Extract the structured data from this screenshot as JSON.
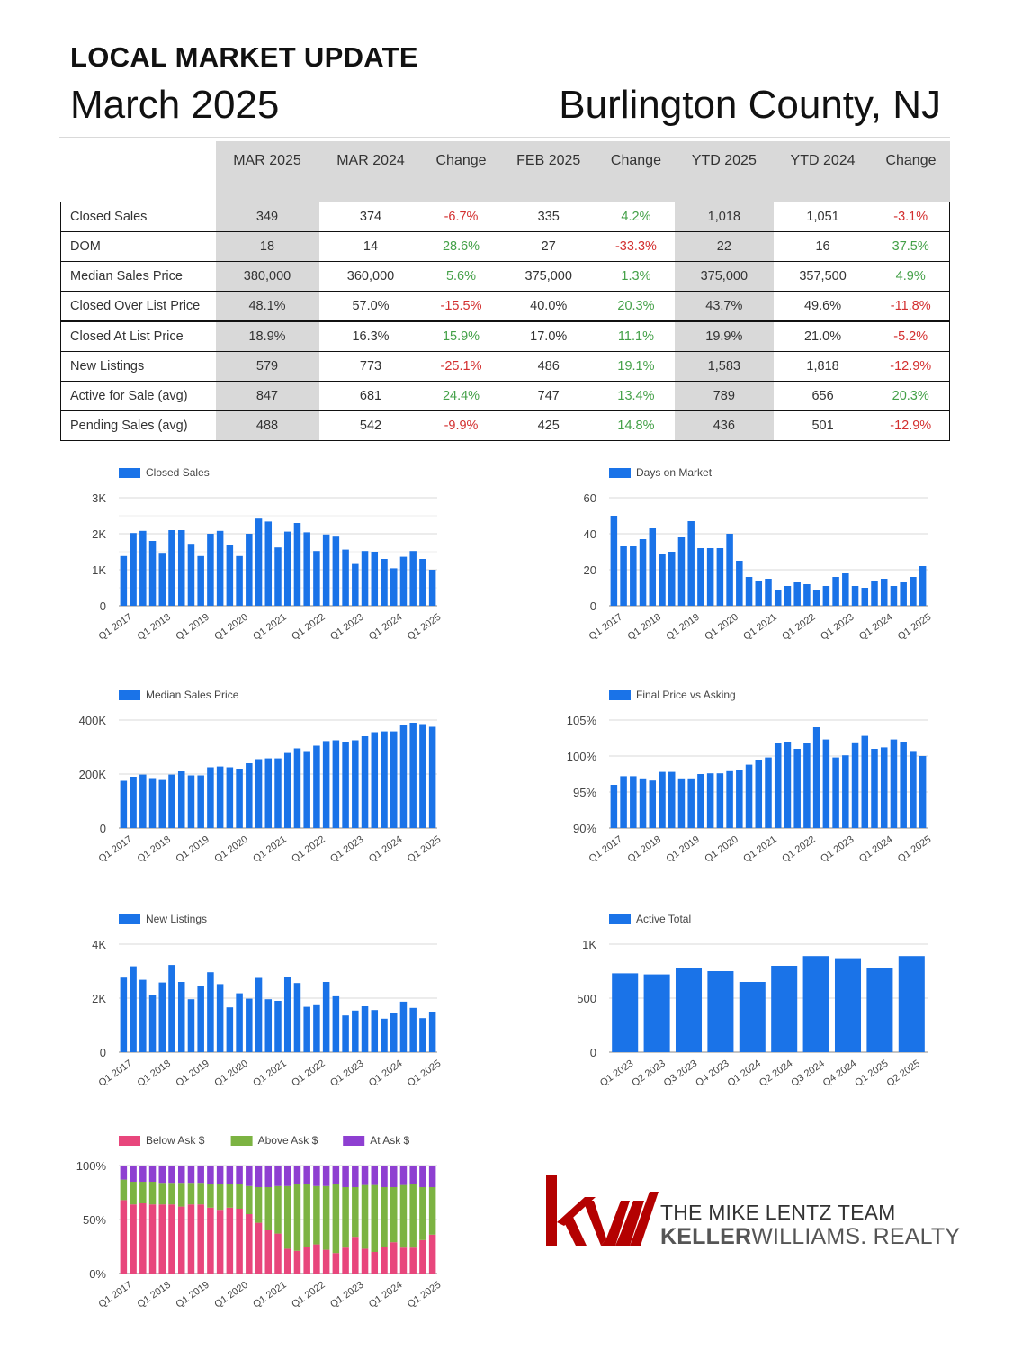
{
  "header": {
    "title": "LOCAL MARKET UPDATE",
    "month": "March 2025",
    "county": "Burlington County, NJ"
  },
  "table": {
    "columns": [
      "MAR 2025",
      "MAR 2024",
      "Change",
      "FEB 2025",
      "Change",
      "YTD 2025",
      "YTD 2024",
      "Change"
    ],
    "rows": [
      {
        "label": "Closed Sales",
        "values": [
          "349",
          "374",
          "-6.7%",
          "335",
          "4.2%",
          "1,018",
          "1,051",
          "-3.1%"
        ]
      },
      {
        "label": "DOM",
        "values": [
          "18",
          "14",
          "28.6%",
          "27",
          "-33.3%",
          "22",
          "16",
          "37.5%"
        ]
      },
      {
        "label": "Median Sales Price",
        "values": [
          "380,000",
          "360,000",
          "5.6%",
          "375,000",
          "1.3%",
          "375,000",
          "357,500",
          "4.9%"
        ]
      },
      {
        "label": "Closed Over List Price",
        "values": [
          "48.1%",
          "57.0%",
          "-15.5%",
          "40.0%",
          "20.3%",
          "43.7%",
          "49.6%",
          "-11.8%"
        ]
      },
      {
        "label": "Closed At List Price",
        "values": [
          "18.9%",
          "16.3%",
          "15.9%",
          "17.0%",
          "11.1%",
          "19.9%",
          "21.0%",
          "-5.2%"
        ]
      },
      {
        "label": "New Listings",
        "values": [
          "579",
          "773",
          "-25.1%",
          "486",
          "19.1%",
          "1,583",
          "1,818",
          "-12.9%"
        ]
      },
      {
        "label": "Active for Sale (avg)",
        "values": [
          "847",
          "681",
          "24.4%",
          "747",
          "13.4%",
          "789",
          "656",
          "20.3%"
        ]
      },
      {
        "label": "Pending Sales (avg)",
        "values": [
          "488",
          "542",
          "-9.9%",
          "425",
          "14.8%",
          "436",
          "501",
          "-12.9%"
        ]
      }
    ],
    "change_colors": {
      "negative": "#d32f2f",
      "positive": "#43a047"
    },
    "shade_color": "#d9d9d9"
  },
  "chart_data": [
    {
      "type": "bar",
      "legend": [
        "Closed Sales"
      ],
      "ylim": [
        0,
        3000
      ],
      "yticks": [
        "0",
        "1K",
        "2K",
        "3K"
      ],
      "xticks": [
        "Q1 2017",
        "Q1 2018",
        "Q1 2019",
        "Q1 2020",
        "Q1 2021",
        "Q1 2022",
        "Q1 2023",
        "Q1 2024",
        "Q1 2025"
      ],
      "series": [
        {
          "name": "Closed Sales",
          "values": [
            1380,
            2020,
            2080,
            1800,
            1470,
            2100,
            2100,
            1720,
            1380,
            2000,
            2080,
            1700,
            1380,
            2000,
            2420,
            2340,
            1620,
            2060,
            2300,
            2040,
            1520,
            1980,
            1920,
            1560,
            1160,
            1520,
            1500,
            1300,
            1040,
            1360,
            1520,
            1300,
            1000
          ]
        }
      ],
      "colors": [
        "#1a73e8"
      ]
    },
    {
      "type": "bar",
      "legend": [
        "Days on Market"
      ],
      "ylim": [
        0,
        60
      ],
      "yticks": [
        "0",
        "20",
        "40",
        "60"
      ],
      "xticks": [
        "Q1 2017",
        "Q1 2018",
        "Q1 2019",
        "Q1 2020",
        "Q1 2021",
        "Q1 2022",
        "Q1 2023",
        "Q1 2024",
        "Q1 2025"
      ],
      "series": [
        {
          "name": "Days on Market",
          "values": [
            50,
            33,
            33,
            37,
            43,
            29,
            30,
            38,
            47,
            32,
            32,
            32,
            40,
            25,
            16,
            14,
            15,
            9,
            11,
            13,
            12,
            9,
            11,
            16,
            18,
            11,
            10,
            14,
            15,
            11,
            13,
            16,
            22
          ]
        }
      ],
      "colors": [
        "#1a73e8"
      ]
    },
    {
      "type": "bar",
      "legend": [
        "Median Sales Price"
      ],
      "ylim": [
        0,
        400000
      ],
      "yticks": [
        "0",
        "200K",
        "400K"
      ],
      "xticks": [
        "Q1 2017",
        "Q1 2018",
        "Q1 2019",
        "Q1 2020",
        "Q1 2021",
        "Q1 2022",
        "Q1 2023",
        "Q1 2024",
        "Q1 2025"
      ],
      "series": [
        {
          "name": "Median Sales Price",
          "values": [
            175000,
            190000,
            198000,
            185000,
            178000,
            198000,
            210000,
            195000,
            195000,
            225000,
            228000,
            225000,
            220000,
            240000,
            255000,
            258000,
            258000,
            278000,
            295000,
            285000,
            305000,
            322000,
            325000,
            320000,
            325000,
            340000,
            355000,
            358000,
            358000,
            382000,
            390000,
            385000,
            375000
          ]
        }
      ],
      "colors": [
        "#1a73e8"
      ]
    },
    {
      "type": "bar",
      "legend": [
        "Final Price vs Asking"
      ],
      "ylim": [
        90,
        105
      ],
      "yticks": [
        "90%",
        "95%",
        "100%",
        "105%"
      ],
      "xticks": [
        "Q1 2017",
        "Q1 2018",
        "Q1 2019",
        "Q1 2020",
        "Q1 2021",
        "Q1 2022",
        "Q1 2023",
        "Q1 2024",
        "Q1 2025"
      ],
      "series": [
        {
          "name": "Final Price vs Asking",
          "values": [
            96.0,
            97.2,
            97.2,
            96.9,
            96.6,
            97.8,
            97.8,
            96.9,
            96.9,
            97.5,
            97.6,
            97.6,
            97.9,
            98.0,
            98.8,
            99.5,
            99.8,
            101.8,
            102.0,
            101.0,
            101.8,
            104.0,
            102.3,
            99.8,
            100.1,
            101.9,
            102.8,
            101.0,
            101.2,
            102.3,
            102.0,
            100.7,
            100.0
          ]
        }
      ],
      "colors": [
        "#1a73e8"
      ]
    },
    {
      "type": "bar",
      "legend": [
        "New Listings"
      ],
      "ylim": [
        0,
        4000
      ],
      "yticks": [
        "0",
        "2K",
        "4K"
      ],
      "xticks": [
        "Q1 2017",
        "Q1 2018",
        "Q1 2019",
        "Q1 2020",
        "Q1 2021",
        "Q1 2022",
        "Q1 2023",
        "Q1 2024",
        "Q1 2025"
      ],
      "series": [
        {
          "name": "New Listings",
          "values": [
            2760,
            3180,
            2680,
            2100,
            2580,
            3230,
            2600,
            1960,
            2440,
            2960,
            2520,
            1660,
            2180,
            1980,
            2750,
            1960,
            1900,
            2790,
            2560,
            1680,
            1740,
            2600,
            2070,
            1360,
            1540,
            1700,
            1560,
            1240,
            1460,
            1870,
            1640,
            1260,
            1500
          ]
        }
      ],
      "colors": [
        "#1a73e8"
      ]
    },
    {
      "type": "bar",
      "legend": [
        "Active Total"
      ],
      "ylim": [
        0,
        1000
      ],
      "yticks": [
        "0",
        "500",
        "1K"
      ],
      "categories": [
        "Q1 2023",
        "Q2 2023",
        "Q3 2023",
        "Q4 2023",
        "Q1 2024",
        "Q2 2024",
        "Q3 2024",
        "Q4 2024",
        "Q1 2025",
        "Q2 2025"
      ],
      "series": [
        {
          "name": "Active Total",
          "values": [
            730,
            720,
            780,
            750,
            650,
            800,
            890,
            870,
            780,
            890
          ]
        }
      ],
      "colors": [
        "#1a73e8"
      ]
    },
    {
      "type": "bar",
      "stacked": true,
      "legend": [
        "Below Ask $",
        "Above Ask $",
        "At Ask $"
      ],
      "ylim": [
        0,
        100
      ],
      "yticks": [
        "0%",
        "50%",
        "100%"
      ],
      "xticks": [
        "Q1 2017",
        "Q1 2018",
        "Q1 2019",
        "Q1 2020",
        "Q1 2021",
        "Q1 2022",
        "Q1 2023",
        "Q1 2024",
        "Q1 2025"
      ],
      "series": [
        {
          "name": "Below Ask $",
          "values": [
            68,
            64,
            65,
            64,
            64,
            64,
            62,
            64,
            64,
            61,
            59,
            61,
            60,
            55,
            47,
            40,
            37,
            23,
            21,
            25,
            27,
            22,
            19,
            24,
            34,
            23,
            20,
            25,
            29,
            24,
            24,
            31,
            36
          ]
        },
        {
          "name": "Above Ask $",
          "values": [
            19,
            21,
            20,
            21,
            20,
            20,
            22,
            20,
            20,
            22,
            24,
            22,
            23,
            26,
            33,
            40,
            44,
            58,
            62,
            58,
            54,
            59,
            64,
            56,
            46,
            59,
            62,
            55,
            51,
            58,
            59,
            49,
            44
          ]
        },
        {
          "name": "At Ask $",
          "values": [
            13,
            15,
            15,
            15,
            16,
            16,
            16,
            16,
            16,
            17,
            17,
            17,
            17,
            19,
            20,
            20,
            19,
            19,
            17,
            17,
            19,
            19,
            17,
            20,
            20,
            18,
            18,
            20,
            20,
            18,
            17,
            20,
            20
          ]
        }
      ],
      "colors": [
        "#e8467c",
        "#7cb342",
        "#8e3fd1"
      ]
    }
  ],
  "logo": {
    "mark": "kw",
    "team": "THE MIKE LENTZ TEAM",
    "brand_bold": "KELLER",
    "brand_rest": "WILLIAMS. REALTY",
    "mark_color": "#b40101"
  }
}
